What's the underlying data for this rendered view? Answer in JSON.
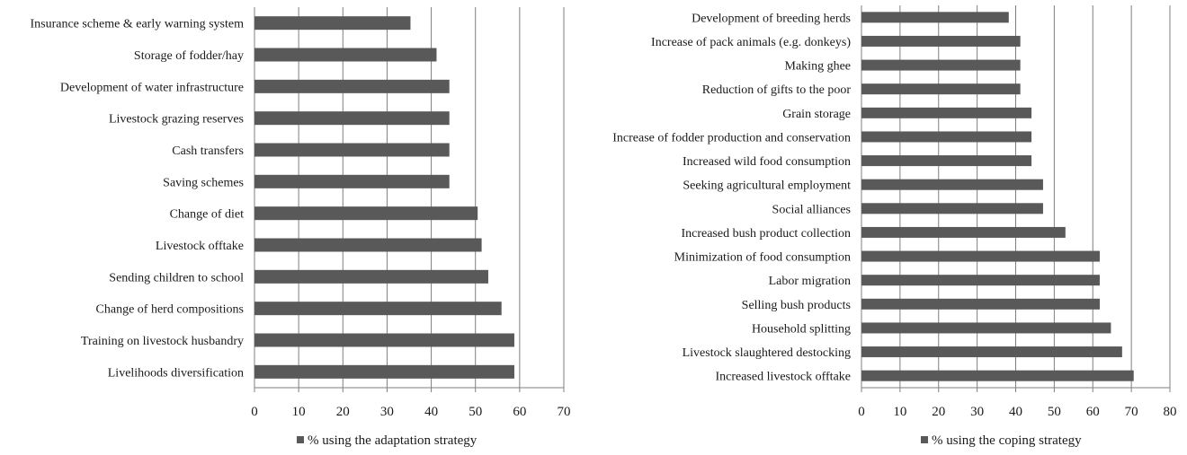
{
  "colors": {
    "bar": "#595959",
    "grid": "#7f7f7f",
    "axis": "#7f7f7f"
  },
  "chart_data": [
    {
      "type": "bar",
      "orientation": "horizontal",
      "categories": [
        "Insurance scheme & early warning system",
        "Storage of fodder/hay",
        "Development of water infrastructure",
        "Livestock grazing reserves",
        "Cash transfers",
        "Saving schemes",
        "Change of diet",
        "Livestock offtake",
        "Sending children to school",
        "Change of herd compositions",
        "Training on livestock husbandry",
        "Livelihoods diversification"
      ],
      "series": [
        {
          "name": "% using the adaptation strategy",
          "values": [
            35.3,
            41.2,
            44.1,
            44.1,
            44.1,
            44.1,
            50.5,
            51.4,
            52.9,
            55.9,
            58.8,
            58.8
          ]
        }
      ],
      "xlim": [
        0,
        70
      ],
      "xticks": [
        0,
        10,
        20,
        30,
        40,
        50,
        60,
        70
      ],
      "grid": "vertical",
      "legend": "bottom"
    },
    {
      "type": "bar",
      "orientation": "horizontal",
      "categories": [
        "Development of breeding herds",
        "Increase of pack animals (e.g. donkeys)",
        "Making ghee",
        "Reduction of gifts to the poor",
        "Grain storage",
        "Increase of fodder production and conservation",
        "Increased wild food consumption",
        "Seeking agricultural employment",
        "Social alliances",
        "Increased bush product collection",
        "Minimization of food consumption",
        "Labor migration",
        "Selling bush products",
        "Household splitting",
        "Livestock slaughtered destocking",
        "Increased livestock offtake"
      ],
      "series": [
        {
          "name": "% using the coping strategy",
          "values": [
            38.2,
            41.2,
            41.2,
            41.2,
            44.1,
            44.1,
            44.1,
            47.1,
            47.1,
            52.9,
            61.8,
            61.8,
            61.8,
            64.7,
            67.6,
            70.6
          ]
        }
      ],
      "xlim": [
        0,
        80
      ],
      "xticks": [
        0,
        10,
        20,
        30,
        40,
        50,
        60,
        70,
        80
      ],
      "grid": "vertical",
      "legend": "bottom"
    }
  ]
}
